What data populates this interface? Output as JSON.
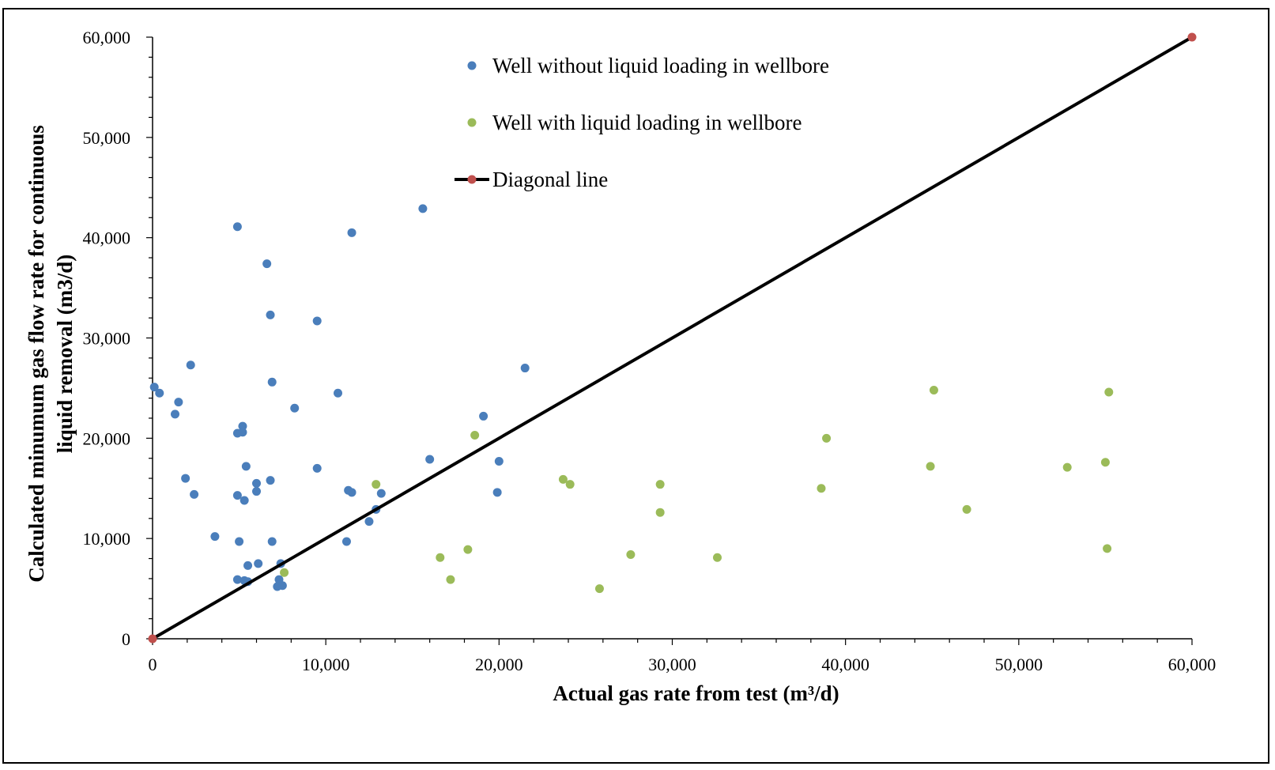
{
  "chart_data": {
    "type": "scatter",
    "title": "",
    "xlabel": "Actual gas rate from test (m³/d)",
    "ylabel_lines": [
      "Calculated minumum gas flow rate for continuous",
      "liquid removal (m3/d)"
    ],
    "xlim": [
      0,
      60000
    ],
    "ylim": [
      0,
      60000
    ],
    "x_ticks": [
      0,
      10000,
      20000,
      30000,
      40000,
      50000,
      60000
    ],
    "y_ticks": [
      0,
      10000,
      20000,
      30000,
      40000,
      50000,
      60000
    ],
    "x_tick_labels": [
      "0",
      "10,000",
      "20,000",
      "30,000",
      "40,000",
      "50,000",
      "60,000"
    ],
    "y_tick_labels": [
      "0",
      "10,000",
      "20,000",
      "30,000",
      "40,000",
      "50,000",
      "60,000"
    ],
    "legend_position": "top-center",
    "series": [
      {
        "name": "Well without liquid loading in wellbore",
        "color": "#4a7ebb",
        "marker": "circle",
        "points": [
          [
            100,
            25100
          ],
          [
            400,
            24500
          ],
          [
            1300,
            22400
          ],
          [
            1500,
            23600
          ],
          [
            1900,
            16000
          ],
          [
            2200,
            27300
          ],
          [
            2400,
            14400
          ],
          [
            3600,
            10200
          ],
          [
            4900,
            41100
          ],
          [
            4900,
            20500
          ],
          [
            4900,
            14300
          ],
          [
            5000,
            9700
          ],
          [
            4900,
            5900
          ],
          [
            5200,
            21200
          ],
          [
            5200,
            20600
          ],
          [
            5300,
            13800
          ],
          [
            5400,
            17200
          ],
          [
            5300,
            5800
          ],
          [
            5500,
            5700
          ],
          [
            5500,
            7300
          ],
          [
            6000,
            15500
          ],
          [
            6000,
            14700
          ],
          [
            6100,
            7500
          ],
          [
            6600,
            37400
          ],
          [
            6800,
            32300
          ],
          [
            6900,
            25600
          ],
          [
            6800,
            15800
          ],
          [
            6900,
            9700
          ],
          [
            7200,
            5200
          ],
          [
            7300,
            5900
          ],
          [
            7400,
            7500
          ],
          [
            7500,
            5300
          ],
          [
            8200,
            23000
          ],
          [
            9500,
            31700
          ],
          [
            9500,
            17000
          ],
          [
            10700,
            24500
          ],
          [
            11200,
            9700
          ],
          [
            11300,
            14800
          ],
          [
            11500,
            40500
          ],
          [
            11500,
            14600
          ],
          [
            12500,
            11700
          ],
          [
            12900,
            12900
          ],
          [
            13200,
            14500
          ],
          [
            15600,
            42900
          ],
          [
            16000,
            17900
          ],
          [
            19100,
            22200
          ],
          [
            19900,
            14600
          ],
          [
            20000,
            17700
          ],
          [
            21500,
            27000
          ]
        ]
      },
      {
        "name": "Well with liquid loading in wellbore",
        "color": "#9bbb59",
        "marker": "circle",
        "points": [
          [
            7600,
            6600
          ],
          [
            12900,
            15400
          ],
          [
            16600,
            8100
          ],
          [
            17200,
            5900
          ],
          [
            18200,
            8900
          ],
          [
            18600,
            20300
          ],
          [
            23700,
            15900
          ],
          [
            24100,
            15400
          ],
          [
            25800,
            5000
          ],
          [
            27600,
            8400
          ],
          [
            29300,
            15400
          ],
          [
            29300,
            12600
          ],
          [
            32600,
            8100
          ],
          [
            38600,
            15000
          ],
          [
            38900,
            20000
          ],
          [
            44900,
            17200
          ],
          [
            45100,
            24800
          ],
          [
            47000,
            12900
          ],
          [
            52800,
            17100
          ],
          [
            55000,
            17600
          ],
          [
            55100,
            9000
          ],
          [
            55200,
            24600
          ]
        ]
      },
      {
        "name": "Diagonal line",
        "color": "#c0504d",
        "line_color": "#000000",
        "marker": "circle",
        "type": "line",
        "points": [
          [
            0,
            0
          ],
          [
            60000,
            60000
          ]
        ]
      }
    ]
  }
}
